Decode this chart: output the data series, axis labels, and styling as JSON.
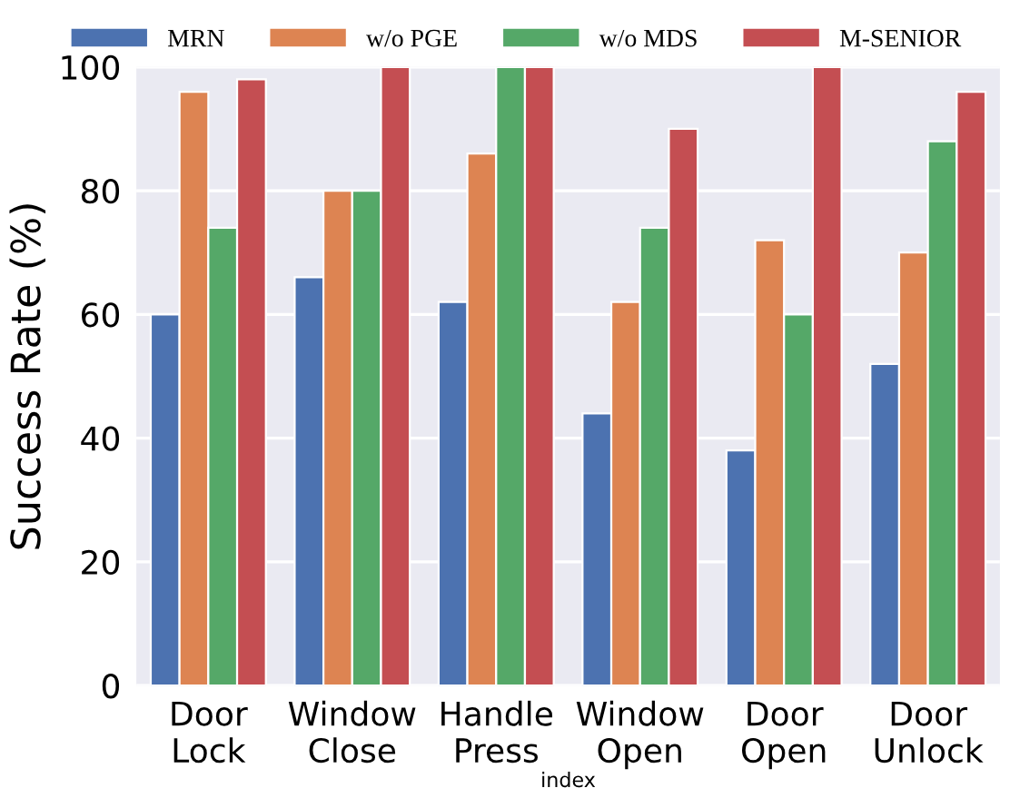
{
  "chart_data": {
    "type": "bar",
    "xlabel": "index",
    "ylabel": "Success Rate (%)",
    "categories": [
      "Door\nLock",
      "Window\nClose",
      "Handle\nPress",
      "Window\nOpen",
      "Door\nOpen",
      "Door\nUnlock"
    ],
    "series": [
      {
        "name": "MRN",
        "color": "#4c72b0",
        "values": [
          60,
          66,
          62,
          44,
          38,
          52
        ]
      },
      {
        "name": "w/o PGE",
        "color": "#dd8452",
        "values": [
          96,
          80,
          86,
          62,
          72,
          70
        ]
      },
      {
        "name": "w/o MDS",
        "color": "#55a868",
        "values": [
          74,
          80,
          100,
          74,
          60,
          88
        ]
      },
      {
        "name": "M-SENIOR",
        "color": "#c44e52",
        "values": [
          98,
          100,
          100,
          90,
          100,
          96
        ]
      }
    ],
    "ylim": [
      0,
      100
    ],
    "yticks": [
      0,
      20,
      40,
      60,
      80,
      100
    ],
    "grid": "y",
    "legend": "top"
  }
}
